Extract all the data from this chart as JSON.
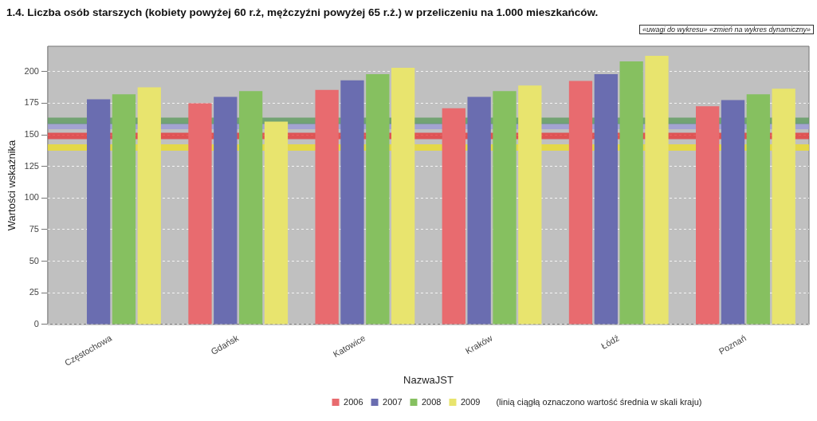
{
  "chart_data": {
    "type": "bar",
    "title": "1.4. Liczba osób starszych (kobiety powyżej 60 r.ż, mężczyźni powyżej 65 r.ż.) w przeliczeniu na 1.000 mieszkańców.",
    "xlabel": "NazwaJST",
    "ylabel": "Wartości wskaźnika",
    "categories": [
      "Częstochowa",
      "Gdańsk",
      "Katowice",
      "Kraków",
      "Łódź",
      "Poznań"
    ],
    "series": [
      {
        "name": "2006",
        "color": "#e86b6f",
        "values": [
          0,
          175,
          185.5,
          171,
          192.5,
          172.5
        ]
      },
      {
        "name": "2007",
        "color": "#6a6db0",
        "values": [
          178,
          180,
          193,
          180,
          198,
          177.5
        ]
      },
      {
        "name": "2008",
        "color": "#86c060",
        "values": [
          182,
          184.5,
          198,
          184.5,
          208,
          182
        ]
      },
      {
        "name": "2009",
        "color": "#e8e46e",
        "values": [
          187.5,
          160.5,
          203,
          189,
          212.5,
          186.5
        ]
      }
    ],
    "ylim": [
      0,
      220
    ],
    "yticks": [
      0,
      25,
      50,
      75,
      100,
      125,
      150,
      175,
      200
    ],
    "grid": "y",
    "legend": "bottom",
    "ref_lines": [
      {
        "axis": "y",
        "value": 149,
        "color": "#e83030"
      },
      {
        "axis": "y",
        "value": 157,
        "color": "#9a9ad8"
      },
      {
        "axis": "y",
        "value": 161,
        "color": "#5a9a5a"
      },
      {
        "axis": "y",
        "value": 140,
        "color": "#f0e020"
      }
    ],
    "annotations": [
      "«uwagi do wykresu» «zmień na wykres dynamiczny»",
      "(linią ciągłą oznaczono wartość średnia w skali kraju)"
    ]
  }
}
